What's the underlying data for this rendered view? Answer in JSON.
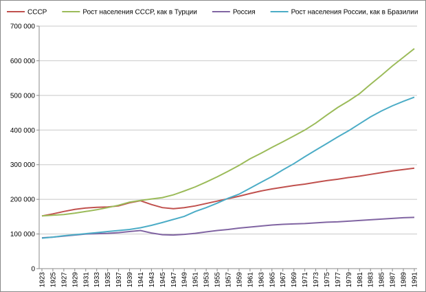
{
  "chart_data": {
    "type": "line",
    "x": [
      1923,
      1925,
      1927,
      1929,
      1931,
      1933,
      1935,
      1937,
      1939,
      1941,
      1943,
      1945,
      1947,
      1949,
      1951,
      1953,
      1955,
      1957,
      1959,
      1961,
      1963,
      1965,
      1967,
      1969,
      1971,
      1973,
      1975,
      1977,
      1979,
      1981,
      1983,
      1985,
      1987,
      1989,
      1991
    ],
    "series": [
      {
        "name": "СССР",
        "color": "#c0504d",
        "values": [
          152000,
          158000,
          165000,
          171000,
          175000,
          177000,
          178000,
          181000,
          190000,
          196000,
          185000,
          176000,
          173000,
          176000,
          181000,
          188000,
          195000,
          202000,
          209000,
          217000,
          224000,
          230000,
          235000,
          240000,
          244000,
          249000,
          254000,
          258000,
          263000,
          267000,
          272000,
          277000,
          282000,
          286000,
          290000
        ]
      },
      {
        "name": "Рост населения СССР, как в Турции",
        "color": "#9bbb59",
        "values": [
          152000,
          154000,
          156000,
          160000,
          165000,
          170000,
          176000,
          183000,
          192000,
          197000,
          201000,
          205000,
          213000,
          224000,
          236000,
          250000,
          265000,
          281000,
          298000,
          317000,
          333000,
          350000,
          366000,
          383000,
          400000,
          420000,
          443000,
          465000,
          484000,
          505000,
          532000,
          558000,
          585000,
          610000,
          635000
        ]
      },
      {
        "name": "Россия",
        "color": "#8064a2",
        "values": [
          89000,
          91000,
          94000,
          97000,
          100000,
          101000,
          102000,
          104000,
          107000,
          110000,
          103000,
          98000,
          97000,
          99000,
          102000,
          106000,
          110000,
          113000,
          117000,
          120000,
          123000,
          126000,
          128000,
          129000,
          130000,
          132000,
          134000,
          135000,
          137000,
          139000,
          141000,
          143000,
          145000,
          147000,
          148000
        ]
      },
      {
        "name": "Рост населения России, как в Бразилии",
        "color": "#4bacc6",
        "values": [
          88000,
          91000,
          95000,
          98000,
          101000,
          104000,
          107000,
          110000,
          113000,
          118000,
          125000,
          133000,
          142000,
          151000,
          165000,
          176000,
          189000,
          203000,
          215000,
          232000,
          249000,
          266000,
          285000,
          303000,
          323000,
          342000,
          361000,
          380000,
          398000,
          418000,
          438000,
          455000,
          470000,
          483000,
          495000
        ]
      }
    ],
    "xlim": [
      1922.5,
      1991.5
    ],
    "xticks": [
      1923,
      1925,
      1927,
      1929,
      1931,
      1933,
      1935,
      1937,
      1939,
      1941,
      1943,
      1945,
      1947,
      1949,
      1951,
      1953,
      1955,
      1957,
      1959,
      1961,
      1963,
      1965,
      1967,
      1969,
      1971,
      1973,
      1975,
      1977,
      1979,
      1981,
      1983,
      1985,
      1987,
      1989,
      1991
    ],
    "ylim": [
      0,
      700000
    ],
    "yticks": [
      0,
      {
        "value": 100000,
        "label": "100 000"
      },
      {
        "value": 200000,
        "label": "200 000"
      },
      {
        "value": 300000,
        "label": "300 000"
      },
      {
        "value": 400000,
        "label": "400 000"
      },
      {
        "value": 500000,
        "label": "500 000"
      },
      {
        "value": 600000,
        "label": "600 000"
      },
      {
        "value": 700000,
        "label": "700 000"
      }
    ],
    "grid": true,
    "legend": "top"
  }
}
